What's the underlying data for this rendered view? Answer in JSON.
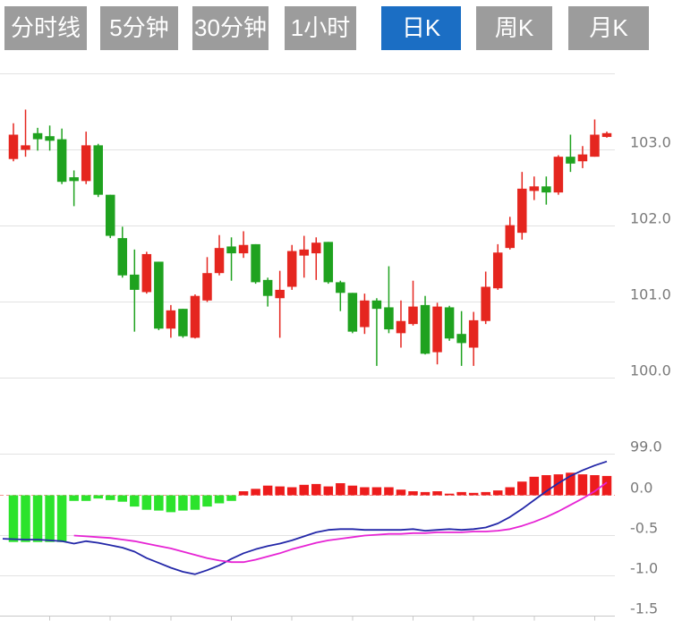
{
  "toolbar": {
    "active_tab": "日K",
    "tabs": [
      {
        "label": "分时线"
      },
      {
        "label": "5分钟"
      },
      {
        "label": "30分钟"
      },
      {
        "label": "1小时"
      },
      {
        "label": "日K"
      },
      {
        "label": "周K"
      },
      {
        "label": "月K"
      }
    ]
  },
  "colors": {
    "up": "#e5261f",
    "down": "#1fa21f",
    "hist_up": "#ed1c1c",
    "hist_down": "#2ce32c",
    "dif_line": "#2327a8",
    "dea_line": "#e623d4",
    "grid": "#e2e2e2",
    "axis_line": "#c8c8c8",
    "zero_line": "#f2948f",
    "axis_text": "#7a7a7a",
    "tab_bg": "#9c9c9c",
    "tab_active_bg": "#1b6ec4",
    "tab_text": "#ffffff"
  },
  "chart_data": [
    {
      "type": "candlestick",
      "panel": "price",
      "ylabel": "",
      "ylim": [
        99.0,
        104.0
      ],
      "y_tick_labels": [
        "103.0",
        "102.0",
        "101.0",
        "100.0",
        "99.0"
      ],
      "y_tick_values": [
        103.0,
        102.0,
        101.0,
        100.0,
        99.0
      ],
      "grid": true,
      "candle_fields": [
        "open",
        "high",
        "low",
        "close"
      ],
      "up_means": "close>=open is red (CN convention)",
      "candles": [
        [
          102.88,
          103.35,
          102.85,
          103.2
        ],
        [
          103.0,
          103.53,
          102.91,
          103.06
        ],
        [
          103.22,
          103.29,
          102.99,
          103.14
        ],
        [
          103.18,
          103.32,
          102.99,
          103.12
        ],
        [
          103.14,
          103.28,
          102.55,
          102.58
        ],
        [
          102.64,
          102.73,
          102.26,
          102.59
        ],
        [
          102.59,
          103.24,
          102.55,
          103.06
        ],
        [
          103.06,
          103.08,
          102.38,
          102.41
        ],
        [
          102.41,
          102.41,
          101.84,
          101.87
        ],
        [
          101.84,
          101.99,
          101.32,
          101.35
        ],
        [
          101.36,
          101.69,
          100.61,
          101.16
        ],
        [
          101.13,
          101.66,
          101.11,
          101.63
        ],
        [
          101.53,
          101.53,
          100.63,
          100.65
        ],
        [
          100.65,
          100.96,
          100.53,
          100.89
        ],
        [
          100.91,
          100.91,
          100.53,
          100.55
        ],
        [
          100.53,
          101.1,
          100.52,
          101.08
        ],
        [
          101.02,
          101.59,
          101.0,
          101.38
        ],
        [
          101.38,
          101.88,
          101.35,
          101.71
        ],
        [
          101.73,
          101.85,
          101.28,
          101.64
        ],
        [
          101.64,
          101.93,
          101.58,
          101.75
        ],
        [
          101.76,
          101.76,
          101.24,
          101.26
        ],
        [
          101.29,
          101.32,
          100.94,
          101.08
        ],
        [
          101.05,
          101.41,
          100.53,
          101.16
        ],
        [
          101.2,
          101.75,
          101.16,
          101.67
        ],
        [
          101.61,
          101.87,
          101.32,
          101.69
        ],
        [
          101.64,
          101.85,
          101.29,
          101.78
        ],
        [
          101.79,
          101.79,
          101.24,
          101.26
        ],
        [
          101.26,
          101.28,
          100.88,
          101.12
        ],
        [
          101.12,
          101.12,
          100.59,
          100.61
        ],
        [
          100.67,
          101.11,
          100.58,
          101.02
        ],
        [
          101.02,
          101.05,
          100.16,
          100.91
        ],
        [
          100.93,
          101.47,
          100.59,
          100.64
        ],
        [
          100.59,
          101.02,
          100.4,
          100.75
        ],
        [
          100.71,
          101.28,
          100.69,
          100.94
        ],
        [
          100.96,
          101.08,
          100.31,
          100.32
        ],
        [
          100.34,
          100.99,
          100.18,
          100.94
        ],
        [
          100.93,
          100.95,
          100.49,
          100.52
        ],
        [
          100.58,
          100.88,
          100.16,
          100.46
        ],
        [
          100.4,
          100.87,
          100.16,
          100.76
        ],
        [
          100.75,
          101.4,
          100.71,
          101.2
        ],
        [
          101.18,
          101.76,
          101.16,
          101.65
        ],
        [
          101.71,
          102.12,
          101.69,
          102.01
        ],
        [
          101.91,
          102.71,
          101.82,
          102.49
        ],
        [
          102.46,
          102.65,
          102.34,
          102.52
        ],
        [
          102.52,
          102.65,
          102.28,
          102.44
        ],
        [
          102.44,
          102.93,
          102.41,
          102.91
        ],
        [
          102.91,
          103.2,
          102.71,
          102.82
        ],
        [
          102.85,
          103.05,
          102.76,
          102.94
        ],
        [
          102.91,
          103.4,
          102.91,
          103.2
        ],
        [
          103.17,
          103.24,
          103.16,
          103.22
        ]
      ],
      "x_tick_indices": [
        3,
        8,
        13,
        18,
        23,
        28,
        33,
        38,
        43,
        48
      ],
      "x_tick_labels": []
    },
    {
      "type": "bar",
      "panel": "macd",
      "ylim": [
        -1.5,
        0.5
      ],
      "y_tick_labels": [
        "0.0",
        "-0.5",
        "-1.0",
        "-1.5"
      ],
      "y_tick_values": [
        0.0,
        -0.5,
        -1.0,
        -1.5
      ],
      "grid": true,
      "zero_line_style": "dashed-red",
      "histogram": [
        -0.58,
        -0.58,
        -0.58,
        -0.58,
        -0.58,
        -0.07,
        -0.07,
        -0.04,
        -0.06,
        -0.08,
        -0.14,
        -0.18,
        -0.19,
        -0.21,
        -0.19,
        -0.18,
        -0.14,
        -0.1,
        -0.07,
        0.05,
        0.08,
        0.12,
        0.11,
        0.1,
        0.13,
        0.14,
        0.11,
        0.15,
        0.12,
        0.1,
        0.1,
        0.1,
        0.07,
        0.05,
        0.04,
        0.05,
        0.02,
        0.04,
        0.03,
        0.04,
        0.06,
        0.1,
        0.17,
        0.23,
        0.25,
        0.26,
        0.28,
        0.26,
        0.25,
        0.24
      ],
      "series": [
        {
          "name": "DIF",
          "color_key": "dif_line",
          "values": [
            -0.54,
            -0.55,
            -0.55,
            -0.56,
            -0.57,
            -0.6,
            -0.57,
            -0.59,
            -0.62,
            -0.65,
            -0.7,
            -0.78,
            -0.84,
            -0.9,
            -0.95,
            -0.98,
            -0.93,
            -0.87,
            -0.79,
            -0.72,
            -0.67,
            -0.63,
            -0.6,
            -0.56,
            -0.51,
            -0.46,
            -0.43,
            -0.42,
            -0.42,
            -0.43,
            -0.43,
            -0.43,
            -0.43,
            -0.42,
            -0.44,
            -0.43,
            -0.42,
            -0.43,
            -0.42,
            -0.4,
            -0.35,
            -0.27,
            -0.17,
            -0.06,
            0.05,
            0.15,
            0.24,
            0.31,
            0.37,
            0.42
          ]
        },
        {
          "name": "DEA",
          "color_key": "dea_line",
          "values": [
            null,
            null,
            null,
            null,
            null,
            -0.5,
            -0.51,
            -0.52,
            -0.53,
            -0.55,
            -0.57,
            -0.6,
            -0.63,
            -0.66,
            -0.7,
            -0.74,
            -0.78,
            -0.81,
            -0.83,
            -0.83,
            -0.8,
            -0.76,
            -0.72,
            -0.67,
            -0.63,
            -0.59,
            -0.56,
            -0.54,
            -0.52,
            -0.5,
            -0.49,
            -0.48,
            -0.48,
            -0.47,
            -0.47,
            -0.46,
            -0.46,
            -0.46,
            -0.45,
            -0.45,
            -0.44,
            -0.42,
            -0.38,
            -0.33,
            -0.27,
            -0.2,
            -0.12,
            -0.04,
            0.05,
            0.16
          ]
        }
      ]
    }
  ]
}
